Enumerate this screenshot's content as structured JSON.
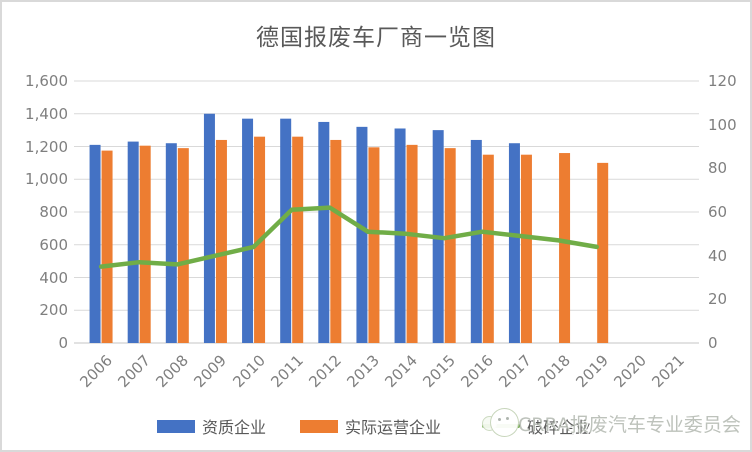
{
  "title": "德国报废车厂商一览图",
  "watermark": {
    "text": "CRRA报废汽车专业委员会",
    "logo": "cartoon-circle-logo"
  },
  "legend": {
    "position": "bottom",
    "items": [
      {
        "label": "资质企业",
        "marker": "bar-swatch",
        "color": "#4472C4"
      },
      {
        "label": "实际运营企业",
        "marker": "bar-swatch",
        "color": "#ED7D31"
      },
      {
        "label": "破碎企业",
        "marker": "line-swatch",
        "color": "#70AD47"
      }
    ]
  },
  "chart_data": {
    "type": "bar",
    "subtype": "clustered bars + line on secondary axis",
    "title": "德国报废车厂商一览图",
    "categories": [
      "2006",
      "2007",
      "2008",
      "2009",
      "2010",
      "2011",
      "2012",
      "2013",
      "2014",
      "2015",
      "2016",
      "2017",
      "2018",
      "2019",
      "2020",
      "2021"
    ],
    "series": [
      {
        "name": "资质企业",
        "type": "bar",
        "axis": "left",
        "color": "#4472C4",
        "values": [
          1210,
          1230,
          1220,
          1400,
          1370,
          1370,
          1350,
          1320,
          1310,
          1300,
          1240,
          1220,
          null,
          null,
          null,
          null
        ]
      },
      {
        "name": "实际运营企业",
        "type": "bar",
        "axis": "left",
        "color": "#ED7D31",
        "values": [
          1175,
          1205,
          1190,
          1240,
          1260,
          1260,
          1240,
          1195,
          1210,
          1190,
          1150,
          1150,
          1160,
          1100,
          null,
          null
        ]
      },
      {
        "name": "破碎企业",
        "type": "line",
        "axis": "right",
        "color": "#70AD47",
        "values": [
          35,
          37,
          36,
          40,
          44,
          61,
          62,
          51,
          50,
          48,
          51,
          49,
          47,
          44,
          null,
          null
        ]
      }
    ],
    "left_axis": {
      "min": 0,
      "max": 1600,
      "step": 200,
      "tick_labels": [
        "0",
        "200",
        "400",
        "600",
        "800",
        "1,000",
        "1,200",
        "1,400",
        "1,600"
      ]
    },
    "right_axis": {
      "min": 0,
      "max": 120,
      "step": 20,
      "tick_labels": [
        "0",
        "20",
        "40",
        "60",
        "80",
        "100",
        "120"
      ]
    },
    "grid": true,
    "gridline_color": "#d9d9d9",
    "xlabel": "",
    "ylabel": "",
    "x_tick_rotation_deg": -45
  }
}
